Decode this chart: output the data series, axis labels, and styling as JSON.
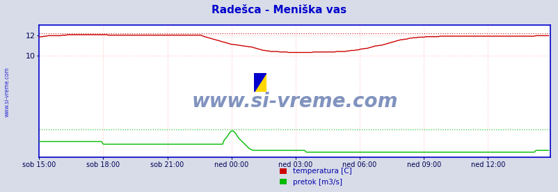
{
  "title": "Radešca - Meniška vas",
  "title_color": "#0000cc",
  "title_fontsize": 11,
  "bg_color": "#d8dce8",
  "plot_bg_color": "#ffffff",
  "watermark": "www.si-vreme.com",
  "yticks": [
    10,
    12
  ],
  "ylim": [
    0,
    13.0
  ],
  "xlim_n": 288,
  "xtick_labels": [
    "sob 15:00",
    "sob 18:00",
    "sob 21:00",
    "ned 00:00",
    "ned 03:00",
    "ned 06:00",
    "ned 09:00",
    "ned 12:00"
  ],
  "xtick_positions": [
    0,
    36,
    72,
    108,
    144,
    180,
    216,
    252
  ],
  "grid_color": "#ff9999",
  "temp_color": "#cc0000",
  "pretok_color": "#00bb00",
  "visina_color": "#0000cc",
  "legend_labels": [
    "temperatura [C]",
    "pretok [m3/s]"
  ],
  "legend_colors": [
    "#cc0000",
    "#00bb00"
  ],
  "temp_max_line": 12.2,
  "temp_data": [
    11.8,
    11.85,
    11.85,
    11.9,
    11.9,
    11.95,
    11.95,
    11.95,
    11.95,
    11.95,
    11.95,
    11.95,
    11.95,
    12.0,
    12.0,
    12.0,
    12.05,
    12.05,
    12.05,
    12.05,
    12.05,
    12.05,
    12.05,
    12.05,
    12.05,
    12.05,
    12.05,
    12.05,
    12.05,
    12.05,
    12.05,
    12.05,
    12.05,
    12.05,
    12.05,
    12.05,
    12.05,
    12.05,
    12.05,
    12.0,
    12.0,
    12.0,
    12.0,
    12.0,
    12.0,
    12.0,
    12.0,
    12.0,
    12.0,
    12.0,
    12.0,
    12.0,
    12.0,
    12.0,
    12.0,
    12.0,
    12.0,
    12.0,
    12.0,
    12.0,
    12.0,
    12.0,
    12.0,
    12.0,
    12.0,
    12.0,
    12.0,
    12.0,
    12.0,
    12.0,
    12.0,
    12.0,
    12.0,
    12.0,
    12.0,
    12.0,
    12.0,
    12.0,
    12.0,
    12.0,
    12.0,
    12.0,
    12.0,
    12.0,
    12.0,
    12.0,
    12.0,
    12.0,
    12.0,
    12.0,
    12.0,
    12.0,
    11.9,
    11.85,
    11.8,
    11.75,
    11.7,
    11.65,
    11.6,
    11.55,
    11.5,
    11.45,
    11.4,
    11.35,
    11.3,
    11.25,
    11.2,
    11.15,
    11.1,
    11.1,
    11.05,
    11.05,
    11.0,
    11.0,
    10.95,
    10.95,
    10.9,
    10.9,
    10.85,
    10.85,
    10.8,
    10.75,
    10.7,
    10.65,
    10.6,
    10.55,
    10.5,
    10.5,
    10.45,
    10.45,
    10.4,
    10.4,
    10.4,
    10.4,
    10.4,
    10.35,
    10.35,
    10.35,
    10.35,
    10.35,
    10.3,
    10.3,
    10.3,
    10.3,
    10.3,
    10.3,
    10.3,
    10.3,
    10.3,
    10.3,
    10.3,
    10.3,
    10.3,
    10.3,
    10.35,
    10.35,
    10.35,
    10.35,
    10.35,
    10.35,
    10.35,
    10.35,
    10.35,
    10.35,
    10.35,
    10.35,
    10.35,
    10.4,
    10.4,
    10.4,
    10.4,
    10.4,
    10.4,
    10.45,
    10.45,
    10.5,
    10.5,
    10.5,
    10.55,
    10.55,
    10.6,
    10.65,
    10.65,
    10.7,
    10.7,
    10.75,
    10.8,
    10.85,
    10.9,
    10.95,
    10.95,
    11.0,
    11.0,
    11.05,
    11.1,
    11.15,
    11.2,
    11.25,
    11.3,
    11.35,
    11.4,
    11.45,
    11.5,
    11.55,
    11.55,
    11.6,
    11.6,
    11.65,
    11.7,
    11.7,
    11.75,
    11.75,
    11.75,
    11.8,
    11.8,
    11.8,
    11.8,
    11.85,
    11.85,
    11.85,
    11.85,
    11.85,
    11.85,
    11.85,
    11.85,
    11.9,
    11.9,
    11.9,
    11.9,
    11.9,
    11.9,
    11.9,
    11.9,
    11.9,
    11.9,
    11.9,
    11.9,
    11.9,
    11.9,
    11.9,
    11.9,
    11.9,
    11.9,
    11.9,
    11.9,
    11.9,
    11.9,
    11.9,
    11.9,
    11.9,
    11.9,
    11.9,
    11.9,
    11.9,
    11.9,
    11.9,
    11.9,
    11.9,
    11.9,
    11.9,
    11.9,
    11.9,
    11.9,
    11.9,
    11.9,
    11.9,
    11.9,
    11.9,
    11.9,
    11.9,
    11.9,
    11.9,
    11.9,
    11.9,
    11.9,
    11.9,
    11.9,
    11.9,
    11.9,
    11.95,
    11.95,
    11.95,
    11.95,
    11.95,
    11.95,
    11.95,
    11.95
  ],
  "pretok_data": [
    0.18,
    0.18,
    0.18,
    0.18,
    0.18,
    0.18,
    0.18,
    0.18,
    0.18,
    0.18,
    0.18,
    0.18,
    0.18,
    0.18,
    0.18,
    0.18,
    0.18,
    0.18,
    0.18,
    0.18,
    0.18,
    0.18,
    0.18,
    0.18,
    0.18,
    0.18,
    0.18,
    0.18,
    0.18,
    0.18,
    0.18,
    0.18,
    0.18,
    0.18,
    0.18,
    0.18,
    0.15,
    0.15,
    0.15,
    0.15,
    0.15,
    0.15,
    0.15,
    0.15,
    0.15,
    0.15,
    0.15,
    0.15,
    0.15,
    0.15,
    0.15,
    0.15,
    0.15,
    0.15,
    0.15,
    0.15,
    0.15,
    0.15,
    0.15,
    0.15,
    0.15,
    0.15,
    0.15,
    0.15,
    0.15,
    0.15,
    0.15,
    0.15,
    0.15,
    0.15,
    0.15,
    0.15,
    0.15,
    0.15,
    0.15,
    0.15,
    0.15,
    0.15,
    0.15,
    0.15,
    0.15,
    0.15,
    0.15,
    0.15,
    0.15,
    0.15,
    0.15,
    0.15,
    0.15,
    0.15,
    0.15,
    0.15,
    0.15,
    0.15,
    0.15,
    0.15,
    0.15,
    0.15,
    0.15,
    0.15,
    0.15,
    0.15,
    0.15,
    0.15,
    0.2,
    0.22,
    0.25,
    0.28,
    0.3,
    0.3,
    0.28,
    0.25,
    0.22,
    0.2,
    0.18,
    0.16,
    0.14,
    0.12,
    0.1,
    0.09,
    0.08,
    0.08,
    0.08,
    0.08,
    0.08,
    0.08,
    0.08,
    0.08,
    0.08,
    0.08,
    0.08,
    0.08,
    0.08,
    0.08,
    0.08,
    0.08,
    0.08,
    0.08,
    0.08,
    0.08,
    0.08,
    0.08,
    0.08,
    0.08,
    0.08,
    0.08,
    0.08,
    0.08,
    0.08,
    0.08,
    0.06,
    0.06,
    0.06,
    0.06,
    0.06,
    0.06,
    0.06,
    0.06,
    0.06,
    0.06,
    0.06,
    0.06,
    0.06,
    0.06,
    0.06,
    0.06,
    0.06,
    0.06,
    0.06,
    0.06,
    0.06,
    0.06,
    0.06,
    0.06,
    0.06,
    0.06,
    0.06,
    0.06,
    0.06,
    0.06,
    0.06,
    0.06,
    0.06,
    0.06,
    0.06,
    0.06,
    0.06,
    0.06,
    0.06,
    0.06,
    0.06,
    0.06,
    0.06,
    0.06,
    0.06,
    0.06,
    0.06,
    0.06,
    0.06,
    0.06,
    0.06,
    0.06,
    0.06,
    0.06,
    0.06,
    0.06,
    0.06,
    0.06,
    0.06,
    0.06,
    0.06,
    0.06,
    0.06,
    0.06,
    0.06,
    0.06,
    0.06,
    0.06,
    0.06,
    0.06,
    0.06,
    0.06,
    0.06,
    0.06,
    0.06,
    0.06,
    0.06,
    0.06,
    0.06,
    0.06,
    0.06,
    0.06,
    0.06,
    0.06,
    0.06,
    0.06,
    0.06,
    0.06,
    0.06,
    0.06,
    0.06,
    0.06,
    0.06,
    0.06,
    0.06,
    0.06,
    0.06,
    0.06,
    0.06,
    0.06,
    0.06,
    0.06,
    0.06,
    0.06,
    0.06,
    0.06,
    0.06,
    0.06,
    0.06,
    0.06,
    0.06,
    0.06,
    0.06,
    0.06,
    0.06,
    0.06,
    0.06,
    0.06,
    0.06,
    0.06,
    0.06,
    0.06,
    0.06,
    0.06,
    0.06,
    0.06,
    0.06,
    0.06,
    0.06,
    0.08,
    0.08,
    0.08,
    0.08,
    0.08,
    0.08,
    0.08,
    0.08
  ]
}
